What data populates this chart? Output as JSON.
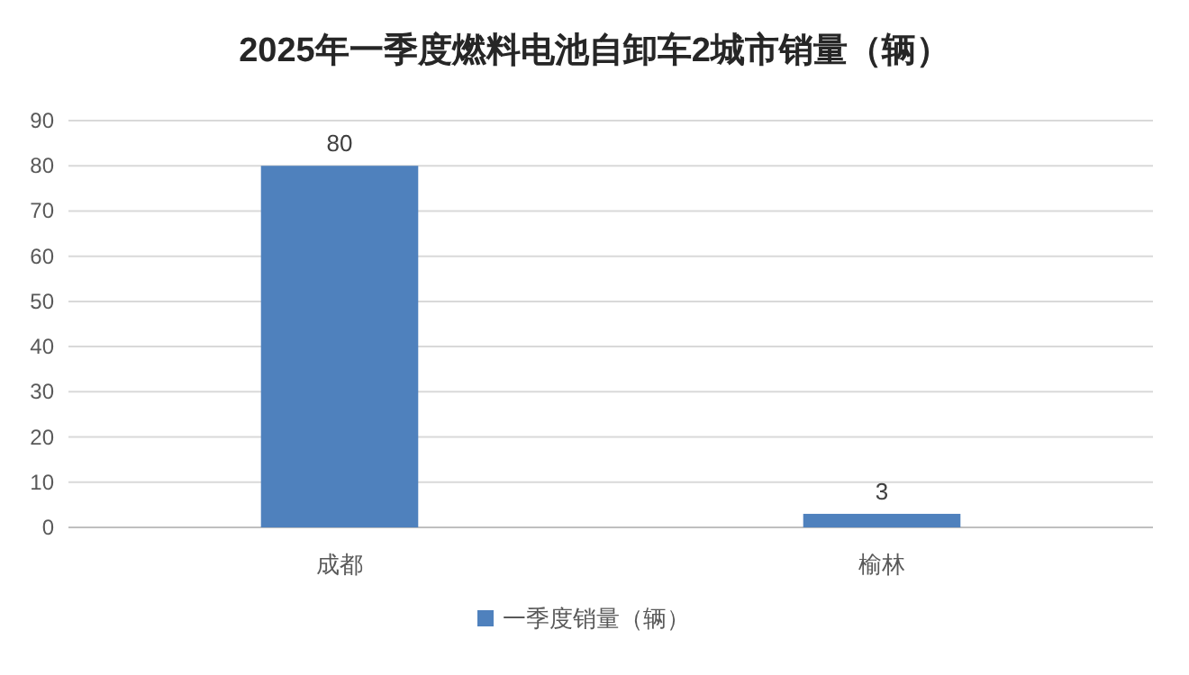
{
  "chart_data": {
    "type": "bar",
    "title": "2025年一季度燃料电池自卸车2城市销量（辆）",
    "categories": [
      "成都",
      "榆林"
    ],
    "series": [
      {
        "name": "一季度销量（辆）",
        "color": "#4f81bd",
        "values": [
          80,
          3
        ]
      }
    ],
    "ylim": [
      0,
      90
    ],
    "yticks": [
      0,
      10,
      20,
      30,
      40,
      50,
      60,
      70,
      80,
      90
    ],
    "grid": "y",
    "legend": "bottom",
    "data_labels": true
  }
}
